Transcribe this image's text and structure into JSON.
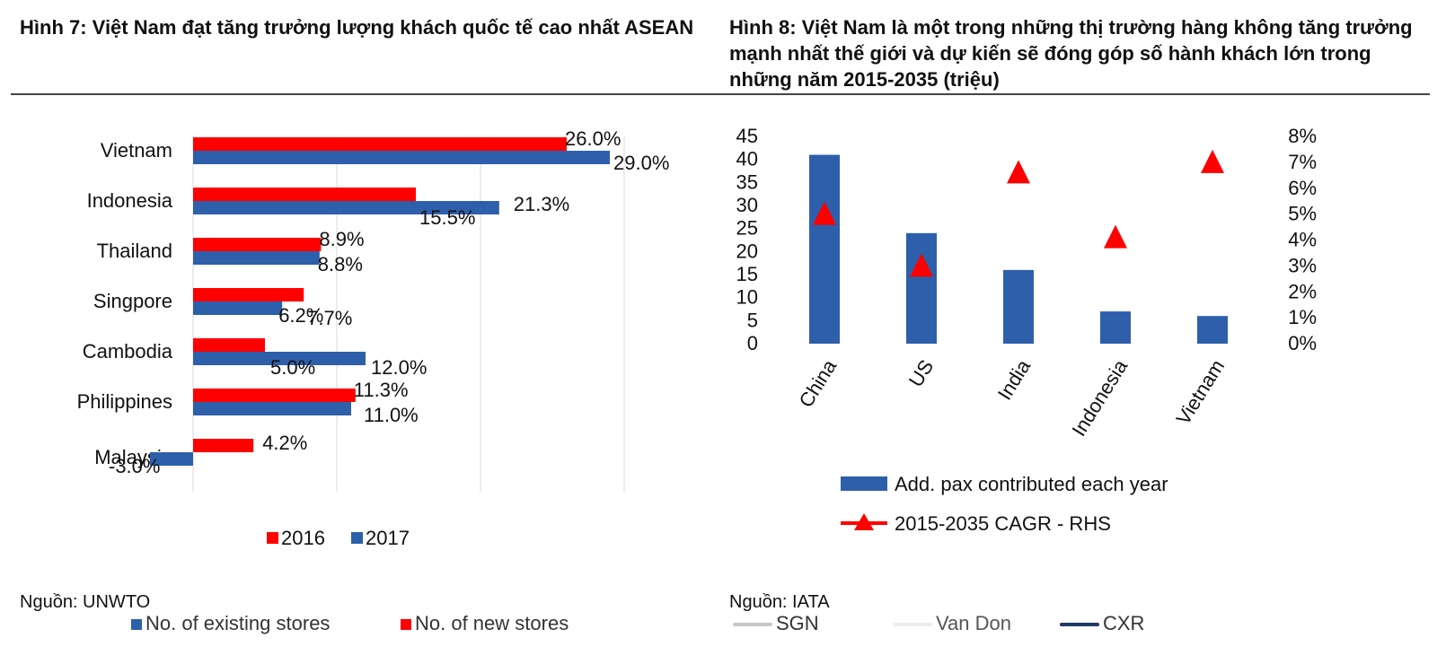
{
  "figure7": {
    "title": "Hình 7: Việt Nam đạt tăng trưởng lượng khách quốc tế cao nhất ASEAN",
    "source": "Nguồn: UNWTO"
  },
  "figure8": {
    "title": "Hình 8: Việt Nam là một trong những thị trường hàng không tăng trưởng mạnh nhất thế giới và dự kiến sẽ đóng góp số hành khách lớn trong những năm 2015-2035 (triệu)",
    "source": "Nguồn: IATA"
  },
  "bleed_through": {
    "existing_stores": "No. of existing stores",
    "new_stores": "No. of new stores",
    "sgn": "SGN",
    "van_don": "Van Don",
    "cxr": "CXR"
  },
  "colors": {
    "red": "#ff0000",
    "blue": "#2e5fab"
  },
  "chart_data": [
    {
      "type": "bar",
      "orientation": "horizontal",
      "categories": [
        "Vietnam",
        "Indonesia",
        "Thailand",
        "Singpore",
        "Cambodia",
        "Philippines",
        "Malaysia"
      ],
      "series": [
        {
          "name": "2016",
          "color": "#ff0000",
          "values": [
            26.0,
            15.5,
            8.9,
            7.7,
            5.0,
            11.3,
            4.2
          ],
          "labels": [
            "26.0%",
            "15.5%",
            "8.9%",
            "7.7%",
            "5.0%",
            "11.3%",
            "4.2%"
          ]
        },
        {
          "name": "2017",
          "color": "#2e5fab",
          "values": [
            29.0,
            21.3,
            8.8,
            6.2,
            12.0,
            11.0,
            -3.0
          ],
          "labels": [
            "29.0%",
            "21.3%",
            "8.8%",
            "6.2%",
            "12.0%",
            "11.0%",
            "-3.0%"
          ]
        }
      ],
      "xlim": [
        -3,
        30
      ],
      "grid": true,
      "legend_position": "bottom"
    },
    {
      "type": "bar",
      "categories": [
        "China",
        "US",
        "India",
        "Indonesia",
        "Vietnam"
      ],
      "series": [
        {
          "name": "Add. pax contributed each year",
          "type": "bar",
          "axis": "left",
          "color": "#2e5fab",
          "values": [
            41,
            24,
            16,
            7,
            6
          ]
        },
        {
          "name": "2015-2035 CAGR - RHS",
          "type": "marker",
          "axis": "right",
          "color": "#ff0000",
          "values": [
            0.05,
            0.03,
            0.066,
            0.041,
            0.07
          ]
        }
      ],
      "y_left": {
        "min": 0,
        "max": 45,
        "ticks": [
          "0",
          "5",
          "10",
          "15",
          "20",
          "25",
          "30",
          "35",
          "40",
          "45"
        ]
      },
      "y_right": {
        "min": 0,
        "max": 0.08,
        "ticks": [
          "0%",
          "1%",
          "2%",
          "3%",
          "4%",
          "5%",
          "6%",
          "7%",
          "8%"
        ]
      },
      "grid": false,
      "legend_position": "bottom"
    }
  ]
}
